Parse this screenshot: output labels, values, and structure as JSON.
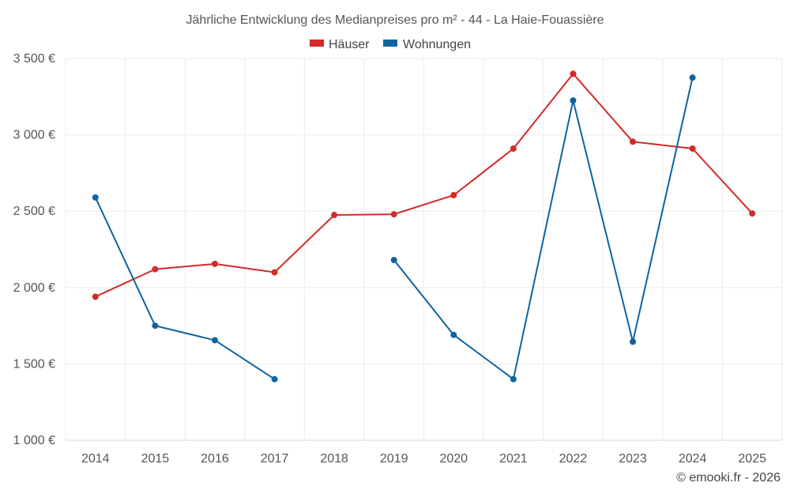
{
  "chart_data": {
    "type": "line",
    "title": "Jährliche Entwicklung des Medianpreises pro m² - 44 - La Haie-Fouassière",
    "categories": [
      "2014",
      "2015",
      "2016",
      "2017",
      "2018",
      "2019",
      "2020",
      "2021",
      "2022",
      "2023",
      "2024",
      "2025"
    ],
    "series": [
      {
        "name": "Häuser",
        "color": "#d32a2a",
        "values": [
          1940,
          2120,
          2155,
          2100,
          2475,
          2480,
          2605,
          2910,
          3400,
          2955,
          2910,
          2485
        ]
      },
      {
        "name": "Wohnungen",
        "color": "#0e64a0",
        "values": [
          2590,
          1750,
          1655,
          1400,
          null,
          2180,
          1690,
          1400,
          3225,
          1645,
          3375,
          null
        ]
      }
    ],
    "y_ticks": [
      1000,
      1500,
      2000,
      2500,
      3000,
      3500
    ],
    "y_tick_labels": [
      "1 000 €",
      "1 500 €",
      "2 000 €",
      "2 500 €",
      "3 000 €",
      "3 500 €"
    ],
    "ylim": [
      1000,
      3500
    ],
    "legend_position": "top-center",
    "grid": true
  },
  "credit": "© emooki.fr - 2026"
}
